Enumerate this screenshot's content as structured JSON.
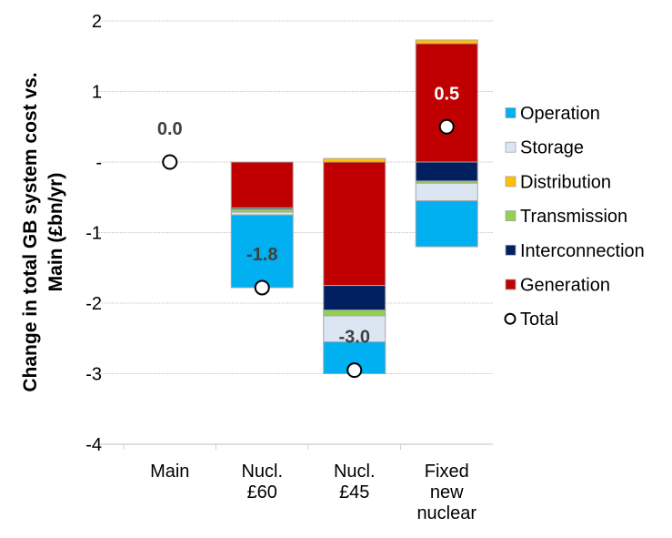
{
  "chart_data": {
    "type": "bar",
    "subtype": "stacked-with-total-markers",
    "title": "",
    "xlabel": "",
    "ylabel": "Change in total GB system cost vs. Main (£bn/yr)",
    "ylabel_lines": [
      "Change in total GB system cost vs.",
      "Main (£bn/yr)"
    ],
    "ylim": [
      -4,
      2
    ],
    "yticks": [
      2,
      1,
      0,
      -1,
      -2,
      -3,
      -4
    ],
    "ytick_labels": [
      "2",
      "1",
      "-",
      "-1",
      "-2",
      "-3",
      "-4"
    ],
    "grid": true,
    "legend_position": "right",
    "categories": [
      "Main",
      "Nucl. £60",
      "Nucl. £45",
      "Fixed new nuclear"
    ],
    "category_lines": [
      [
        "Main"
      ],
      [
        "Nucl.",
        "£60"
      ],
      [
        "Nucl.",
        "£45"
      ],
      [
        "Fixed",
        "new",
        "nuclear"
      ]
    ],
    "series": [
      {
        "name": "Operation",
        "color": "#00B0F0",
        "values": [
          0,
          -1.03,
          -0.45,
          -0.65
        ]
      },
      {
        "name": "Storage",
        "color": "#DCE6F2",
        "values": [
          0,
          -0.04,
          -0.37,
          -0.25
        ]
      },
      {
        "name": "Distribution",
        "color": "#FFC000",
        "values": [
          0,
          0,
          0.05,
          0.05
        ]
      },
      {
        "name": "Transmission",
        "color": "#92D050",
        "values": [
          0,
          -0.04,
          -0.08,
          -0.03
        ]
      },
      {
        "name": "Interconnection",
        "color": "#002060",
        "values": [
          0,
          -0.02,
          -0.35,
          -0.27
        ]
      },
      {
        "name": "Generation",
        "color": "#C00000",
        "values": [
          0,
          -0.65,
          -1.75,
          1.68
        ]
      }
    ],
    "stack_order_negative": [
      "Generation",
      "Interconnection",
      "Transmission",
      "Storage",
      "Operation"
    ],
    "stack_order_positive": [
      "Generation",
      "Distribution"
    ],
    "totals": {
      "name": "Total",
      "values": [
        0.0,
        -1.78,
        -2.95,
        0.5
      ],
      "labels": [
        "0.0",
        "-1.8",
        "-3.0",
        "0.5"
      ],
      "label_colors": [
        "#404040",
        "#404040",
        "#404040",
        "#FFFFFF"
      ]
    },
    "legend": [
      "Operation",
      "Storage",
      "Distribution",
      "Transmission",
      "Interconnection",
      "Generation",
      "Total"
    ]
  }
}
